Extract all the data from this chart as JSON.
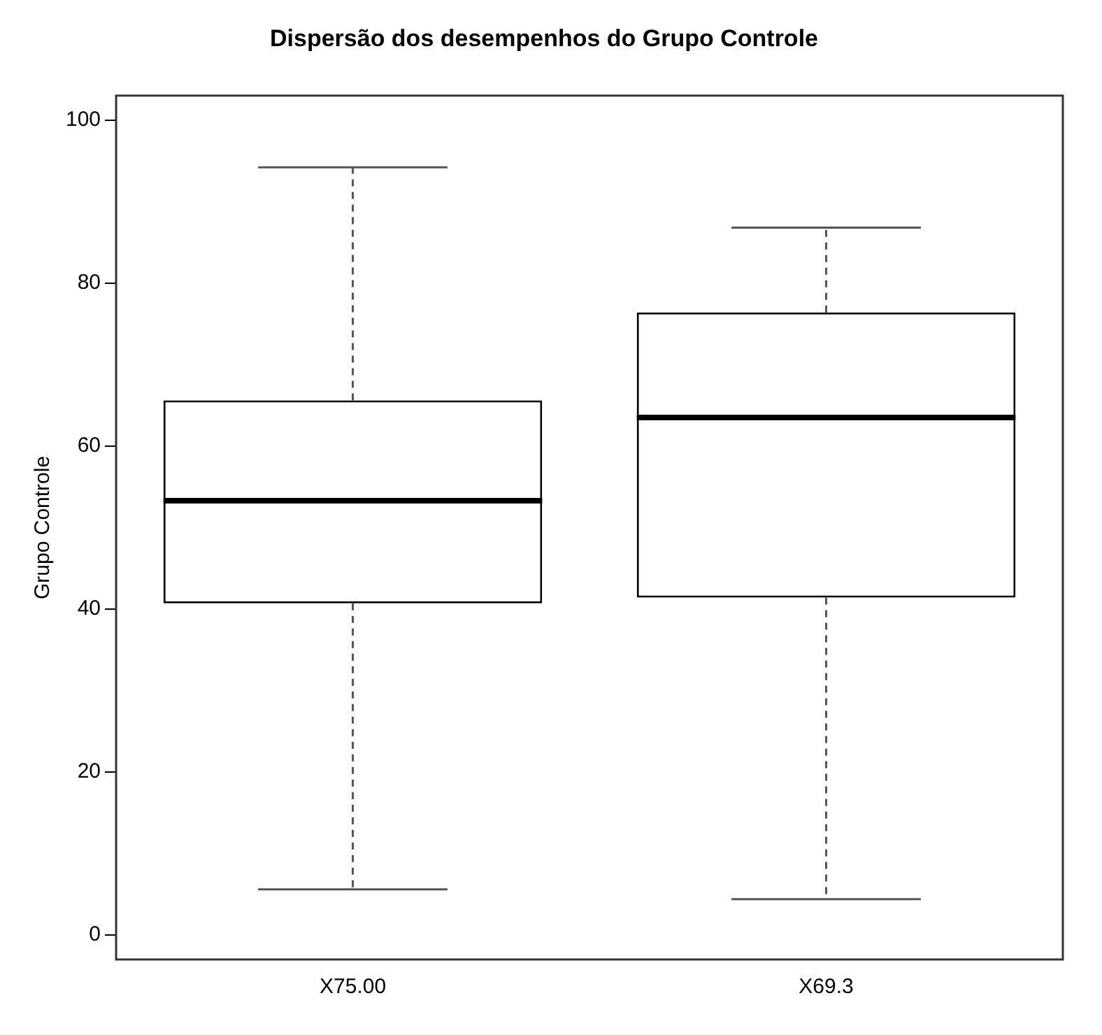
{
  "chart_data": {
    "type": "box",
    "title": "Dispersão dos desempenhos do Grupo Controle",
    "ylabel": "Grupo Controle",
    "categories": [
      "X75.00",
      "X69.3"
    ],
    "boxes": [
      {
        "low": 5.6,
        "q1": 40.7,
        "median": 53.3,
        "q3": 65.6,
        "high": 94.2
      },
      {
        "low": 4.4,
        "q1": 41.4,
        "median": 63.5,
        "q3": 76.4,
        "high": 86.8
      }
    ],
    "ylim": [
      -3,
      103
    ],
    "yticks": [
      0,
      20,
      40,
      60,
      80,
      100
    ]
  }
}
